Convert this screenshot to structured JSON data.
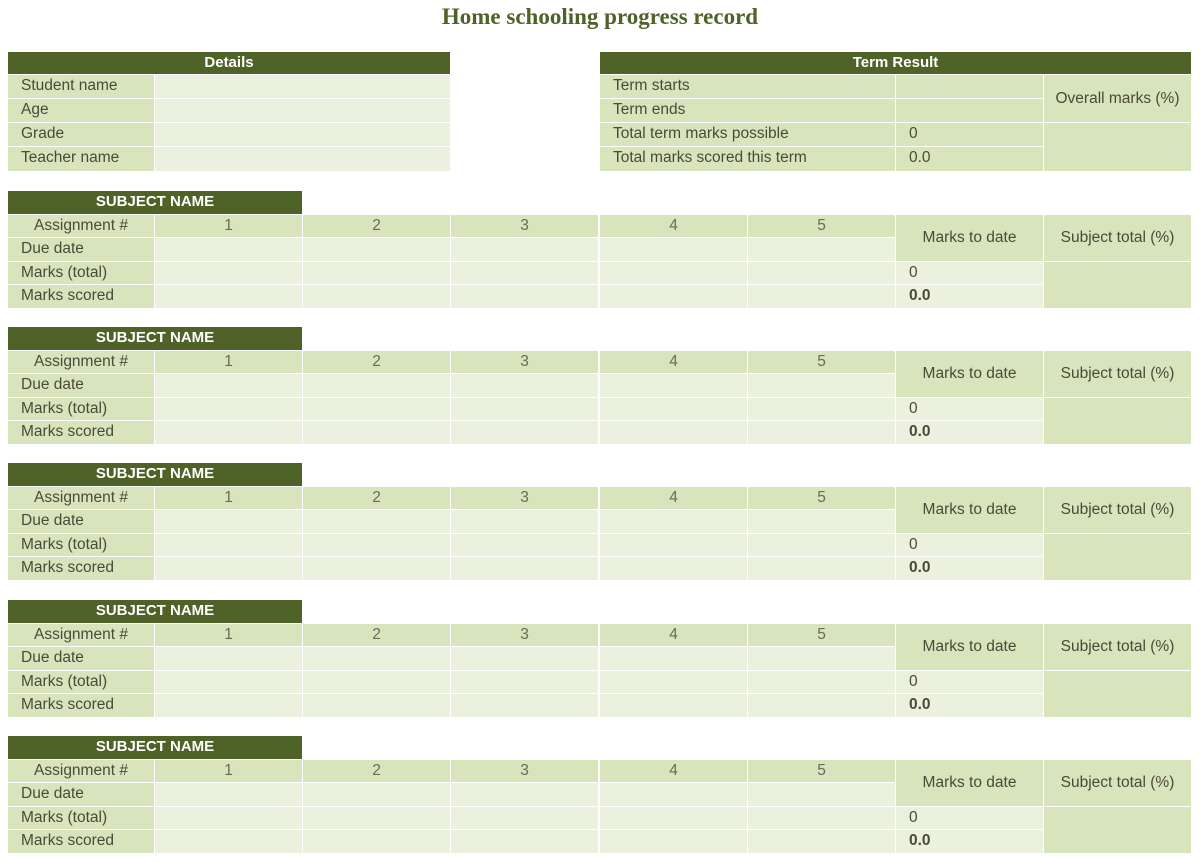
{
  "title": "Home schooling progress record",
  "details": {
    "header": "Details",
    "rows": [
      {
        "label": "Student name",
        "value": ""
      },
      {
        "label": "Age",
        "value": ""
      },
      {
        "label": "Grade",
        "value": ""
      },
      {
        "label": "Teacher name",
        "value": ""
      }
    ]
  },
  "term": {
    "header": "Term Result",
    "rows": [
      {
        "label": "Term starts",
        "value": ""
      },
      {
        "label": "Term ends",
        "value": ""
      },
      {
        "label": "Total term marks possible",
        "value": "0"
      },
      {
        "label": "Total marks scored this term",
        "value": "0.0"
      }
    ],
    "overall_label": "Overall marks (%)"
  },
  "subject_labels": {
    "assignment": "Assignment #",
    "due_date": "Due date",
    "marks_total": "Marks (total)",
    "marks_scored": "Marks scored",
    "marks_to_date": "Marks to date",
    "subject_total": "Subject total (%)",
    "numbers": [
      "1",
      "2",
      "3",
      "4",
      "5"
    ]
  },
  "subjects": [
    {
      "name": "SUBJECT  NAME",
      "marks_total_sum": "0",
      "marks_scored_sum": "0.0"
    },
    {
      "name": "SUBJECT  NAME",
      "marks_total_sum": "0",
      "marks_scored_sum": "0.0"
    },
    {
      "name": "SUBJECT  NAME",
      "marks_total_sum": "0",
      "marks_scored_sum": "0.0"
    },
    {
      "name": "SUBJECT  NAME",
      "marks_total_sum": "0",
      "marks_scored_sum": "0.0"
    },
    {
      "name": "SUBJECT  NAME",
      "marks_total_sum": "0",
      "marks_scored_sum": "0.0"
    }
  ]
}
